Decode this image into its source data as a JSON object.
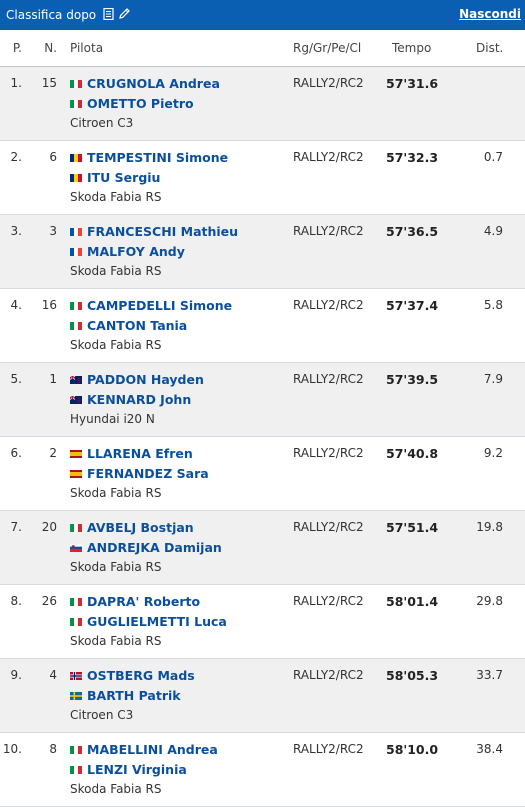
{
  "topbar": {
    "title": "Classifica dopo",
    "hide_label": "Nascondi"
  },
  "columns": {
    "pos": "P.",
    "num": "N.",
    "pilota": "Pilota",
    "class": "Rg/Gr/Pe/Cl",
    "tempo": "Tempo",
    "dist": "Dist."
  },
  "rows": [
    {
      "pos": "1.",
      "num": "15",
      "driver": "CRUGNOLA Andrea",
      "driver_flag": "italy-flag-icon",
      "codriver": "OMETTO Pietro",
      "codriver_flag": "italy-flag-icon",
      "car": "Citroen C3",
      "class": "RALLY2/RC2",
      "time": "57'31.6",
      "dist": ""
    },
    {
      "pos": "2.",
      "num": "6",
      "driver": "TEMPESTINI Simone",
      "driver_flag": "romania-flag-icon",
      "codriver": "ITU Sergiu",
      "codriver_flag": "romania-flag-icon",
      "car": "Skoda Fabia RS",
      "class": "RALLY2/RC2",
      "time": "57'32.3",
      "dist": "0.7"
    },
    {
      "pos": "3.",
      "num": "3",
      "driver": "FRANCESCHI Mathieu",
      "driver_flag": "france-flag-icon",
      "codriver": "MALFOY Andy",
      "codriver_flag": "france-flag-icon",
      "car": "Skoda Fabia RS",
      "class": "RALLY2/RC2",
      "time": "57'36.5",
      "dist": "4.9"
    },
    {
      "pos": "4.",
      "num": "16",
      "driver": "CAMPEDELLI Simone",
      "driver_flag": "italy-flag-icon",
      "codriver": "CANTON Tania",
      "codriver_flag": "italy-flag-icon",
      "car": "Skoda Fabia RS",
      "class": "RALLY2/RC2",
      "time": "57'37.4",
      "dist": "5.8"
    },
    {
      "pos": "5.",
      "num": "1",
      "driver": "PADDON Hayden",
      "driver_flag": "new-zealand-flag-icon",
      "codriver": "KENNARD John",
      "codriver_flag": "new-zealand-flag-icon",
      "car": "Hyundai i20 N",
      "class": "RALLY2/RC2",
      "time": "57'39.5",
      "dist": "7.9"
    },
    {
      "pos": "6.",
      "num": "2",
      "driver": "LLARENA Efren",
      "driver_flag": "spain-flag-icon",
      "codriver": "FERNANDEZ Sara",
      "codriver_flag": "spain-flag-icon",
      "car": "Skoda Fabia RS",
      "class": "RALLY2/RC2",
      "time": "57'40.8",
      "dist": "9.2"
    },
    {
      "pos": "7.",
      "num": "20",
      "driver": "AVBELJ Bostjan",
      "driver_flag": "italy-flag-icon",
      "codriver": "ANDREJKA Damijan",
      "codriver_flag": "slovenia-flag-icon",
      "car": "Skoda Fabia RS",
      "class": "RALLY2/RC2",
      "time": "57'51.4",
      "dist": "19.8"
    },
    {
      "pos": "8.",
      "num": "26",
      "driver": "DAPRA' Roberto",
      "driver_flag": "italy-flag-icon",
      "codriver": "GUGLIELMETTI Luca",
      "codriver_flag": "italy-flag-icon",
      "car": "Skoda Fabia RS",
      "class": "RALLY2/RC2",
      "time": "58'01.4",
      "dist": "29.8"
    },
    {
      "pos": "9.",
      "num": "4",
      "driver": "OSTBERG Mads",
      "driver_flag": "norway-flag-icon",
      "codriver": "BARTH Patrik",
      "codriver_flag": "sweden-flag-icon",
      "car": "Citroen C3",
      "class": "RALLY2/RC2",
      "time": "58'05.3",
      "dist": "33.7"
    },
    {
      "pos": "10.",
      "num": "8",
      "driver": "MABELLINI Andrea",
      "driver_flag": "italy-flag-icon",
      "codriver": "LENZI Virginia",
      "codriver_flag": "italy-flag-icon",
      "car": "Skoda Fabia RS",
      "class": "RALLY2/RC2",
      "time": "58'10.0",
      "dist": "38.4"
    }
  ]
}
